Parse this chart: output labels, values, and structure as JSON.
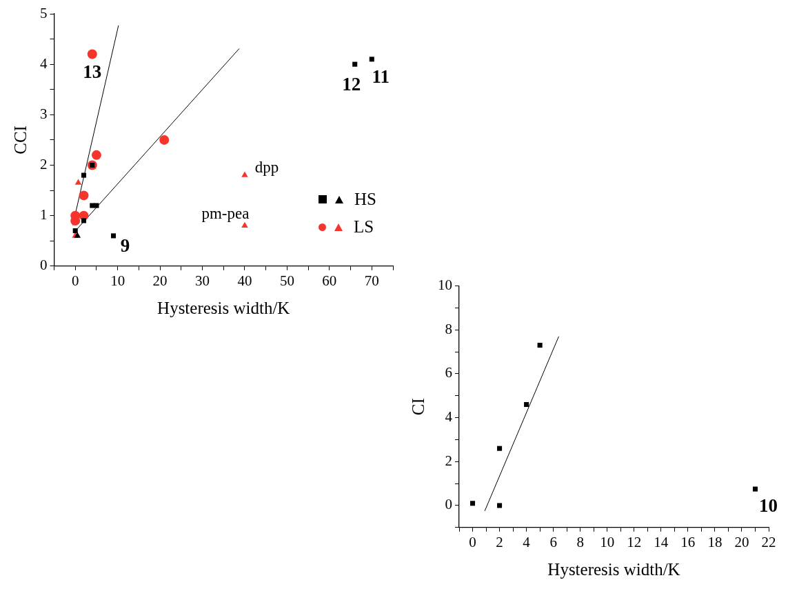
{
  "chart_data": [
    {
      "type": "scatter",
      "xlabel": "Hysteresis width/K",
      "ylabel": "CCI",
      "xlim": [
        -5,
        75
      ],
      "ylim": [
        0,
        5
      ],
      "xticks": [
        {
          "value": -5,
          "label": null
        },
        0,
        {
          "value": 5,
          "label": null
        },
        10,
        {
          "value": 15,
          "label": null
        },
        20,
        {
          "value": 25,
          "label": null
        },
        30,
        {
          "value": 35,
          "label": null
        },
        40,
        {
          "value": 45,
          "label": null
        },
        50,
        {
          "value": 55,
          "label": null
        },
        60,
        {
          "value": 65,
          "label": null
        },
        70,
        {
          "value": 75,
          "label": null
        }
      ],
      "yticks": [
        0,
        {
          "value": 0.5,
          "label": null
        },
        1,
        {
          "value": 1.5,
          "label": null
        },
        2,
        {
          "value": 2.5,
          "label": null
        },
        3,
        {
          "value": 3.5,
          "label": null
        },
        4,
        {
          "value": 4.5,
          "label": null
        },
        5
      ],
      "grid": false,
      "legend": "right",
      "series": [
        {
          "name": "HS",
          "type": "scatter",
          "marker": "square",
          "color": "#000000",
          "x": [
            0,
            2,
            2,
            4,
            4,
            5,
            9,
            66,
            70
          ],
          "values": [
            0.7,
            0.9,
            1.8,
            2.0,
            1.2,
            1.2,
            0.6,
            4.0,
            4.1
          ]
        },
        {
          "type": "scatter",
          "marker": "triangle",
          "color": "#000000",
          "x": [
            0.5
          ],
          "values": [
            0.6
          ]
        },
        {
          "name": "LS",
          "type": "scatter",
          "marker": "circle",
          "color": "#f5342b",
          "x": [
            0,
            0,
            2,
            2,
            4,
            5,
            4,
            21
          ],
          "values": [
            1.0,
            0.9,
            1.4,
            1.0,
            2.0,
            2.2,
            4.2,
            2.5
          ]
        },
        {
          "type": "scatter",
          "marker": "triangle",
          "color": "#f5342b",
          "x": [
            0,
            0.7,
            40,
            40
          ],
          "values": [
            0.6,
            1.65,
            1.8,
            0.8
          ]
        },
        {
          "type": "line",
          "marker": "none",
          "color": "#000000",
          "x": [
            -0.6,
            10.2
          ],
          "values": [
            0.81,
            4.77
          ]
        },
        {
          "type": "line",
          "marker": "none",
          "color": "#000000",
          "x": [
            0.05,
            38.7
          ],
          "values": [
            0.7,
            4.31
          ]
        }
      ],
      "annotations": [
        {
          "text": "13",
          "x": 4,
          "y": 4.2
        },
        {
          "text": "12",
          "x": 66,
          "y": 4.0
        },
        {
          "text": "11",
          "x": 70,
          "y": 4.1
        },
        {
          "text": "9",
          "x": 9,
          "y": 0.6
        },
        {
          "text": "dpp",
          "x": 40,
          "y": 1.8
        },
        {
          "text": "pm-pea",
          "x": 40,
          "y": 0.8
        }
      ]
    },
    {
      "type": "scatter",
      "xlabel": "Hysteresis width/K",
      "ylabel": "CI",
      "xlim": [
        -1,
        22
      ],
      "ylim": [
        -1,
        10
      ],
      "xticks": [
        {
          "value": -1,
          "label": null
        },
        0,
        {
          "value": 1,
          "label": null
        },
        2,
        {
          "value": 3,
          "label": null
        },
        4,
        {
          "value": 5,
          "label": null
        },
        6,
        {
          "value": 7,
          "label": null
        },
        8,
        {
          "value": 9,
          "label": null
        },
        10,
        {
          "value": 11,
          "label": null
        },
        12,
        {
          "value": 13,
          "label": null
        },
        14,
        {
          "value": 15,
          "label": null
        },
        16,
        {
          "value": 17,
          "label": null
        },
        18,
        {
          "value": 19,
          "label": null
        },
        20,
        {
          "value": 21,
          "label": null
        },
        22
      ],
      "yticks": [
        {
          "value": -1,
          "label": null
        },
        0,
        {
          "value": 1,
          "label": null
        },
        2,
        {
          "value": 3,
          "label": null
        },
        4,
        {
          "value": 5,
          "label": null
        },
        6,
        {
          "value": 7,
          "label": null
        },
        8,
        {
          "value": 9,
          "label": null
        },
        10
      ],
      "grid": false,
      "legend": false,
      "series": [
        {
          "type": "scatter",
          "marker": "square",
          "color": "#000000",
          "x": [
            0,
            2,
            2,
            4,
            5,
            21
          ],
          "values": [
            0.1,
            0.0,
            2.6,
            4.6,
            7.3,
            0.75
          ]
        },
        {
          "type": "line",
          "marker": "none",
          "color": "#000000",
          "x": [
            0.9,
            6.4
          ],
          "values": [
            -0.25,
            7.7
          ]
        }
      ],
      "annotations": [
        {
          "text": "10",
          "x": 21,
          "y": 0.75
        }
      ]
    }
  ]
}
